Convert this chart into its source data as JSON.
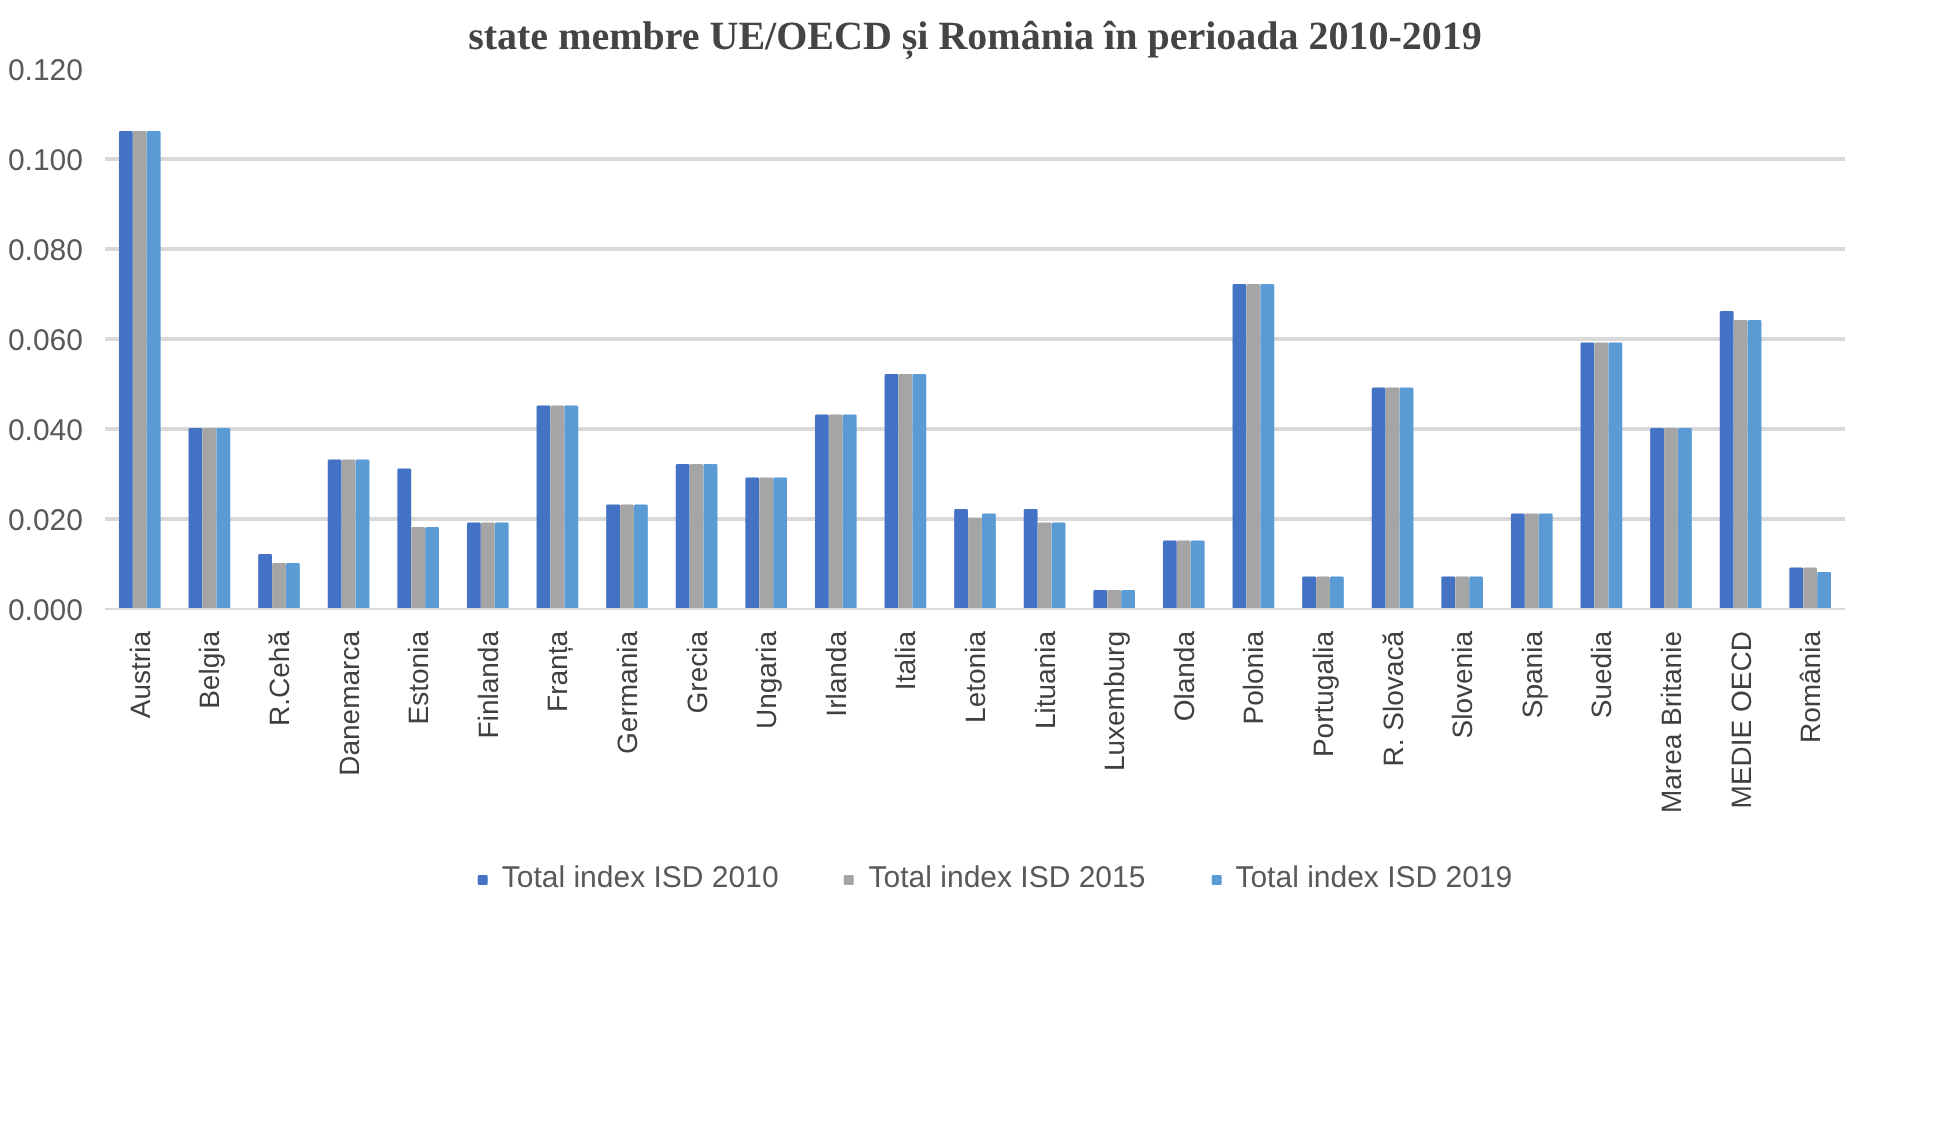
{
  "chart_data": {
    "type": "bar",
    "title": "state membre UE/OECD și România în perioada 2010-2019",
    "categories": [
      "Austria",
      "Belgia",
      "R.Cehă",
      "Danemarca",
      "Estonia",
      "Finlanda",
      "Franța",
      "Germania",
      "Grecia",
      "Ungaria",
      "Irlanda",
      "Italia",
      "Letonia",
      "Lituania",
      "Luxemburg",
      "Olanda",
      "Polonia",
      "Portugalia",
      "R. Slovacă",
      "Slovenia",
      "Spania",
      "Suedia",
      "Marea Britanie",
      "MEDIE OECD",
      "România"
    ],
    "series": [
      {
        "name": "Total index ISD 2010",
        "color": "#4472c4",
        "values": [
          0.106,
          0.04,
          0.012,
          0.033,
          0.031,
          0.019,
          0.045,
          0.023,
          0.032,
          0.029,
          0.043,
          0.052,
          0.022,
          0.022,
          0.004,
          0.015,
          0.072,
          0.007,
          0.049,
          0.007,
          0.021,
          0.059,
          0.04,
          0.066,
          0.009
        ]
      },
      {
        "name": "Total index ISD 2015",
        "color": "#a5a5a5",
        "values": [
          0.106,
          0.04,
          0.01,
          0.033,
          0.018,
          0.019,
          0.045,
          0.023,
          0.032,
          0.029,
          0.043,
          0.052,
          0.02,
          0.019,
          0.004,
          0.015,
          0.072,
          0.007,
          0.049,
          0.007,
          0.021,
          0.059,
          0.04,
          0.064,
          0.009
        ]
      },
      {
        "name": "Total index ISD 2019",
        "color": "#5b9bd5",
        "values": [
          0.106,
          0.04,
          0.01,
          0.033,
          0.018,
          0.019,
          0.045,
          0.023,
          0.032,
          0.029,
          0.043,
          0.052,
          0.021,
          0.019,
          0.004,
          0.015,
          0.072,
          0.007,
          0.049,
          0.007,
          0.021,
          0.059,
          0.04,
          0.064,
          0.008
        ]
      }
    ],
    "ylim": [
      0,
      0.12
    ],
    "yticks": [
      {
        "value": 0,
        "label": "0.000"
      },
      {
        "value": 0.02,
        "label": "0.020"
      },
      {
        "value": 0.04,
        "label": "0.040"
      },
      {
        "value": 0.06,
        "label": "0.060"
      },
      {
        "value": 0.08,
        "label": "0.080"
      },
      {
        "value": 0.1,
        "label": "0.100"
      },
      {
        "value": 0.12,
        "label": "0.120"
      }
    ],
    "grid": "y",
    "legend": "bottom"
  }
}
